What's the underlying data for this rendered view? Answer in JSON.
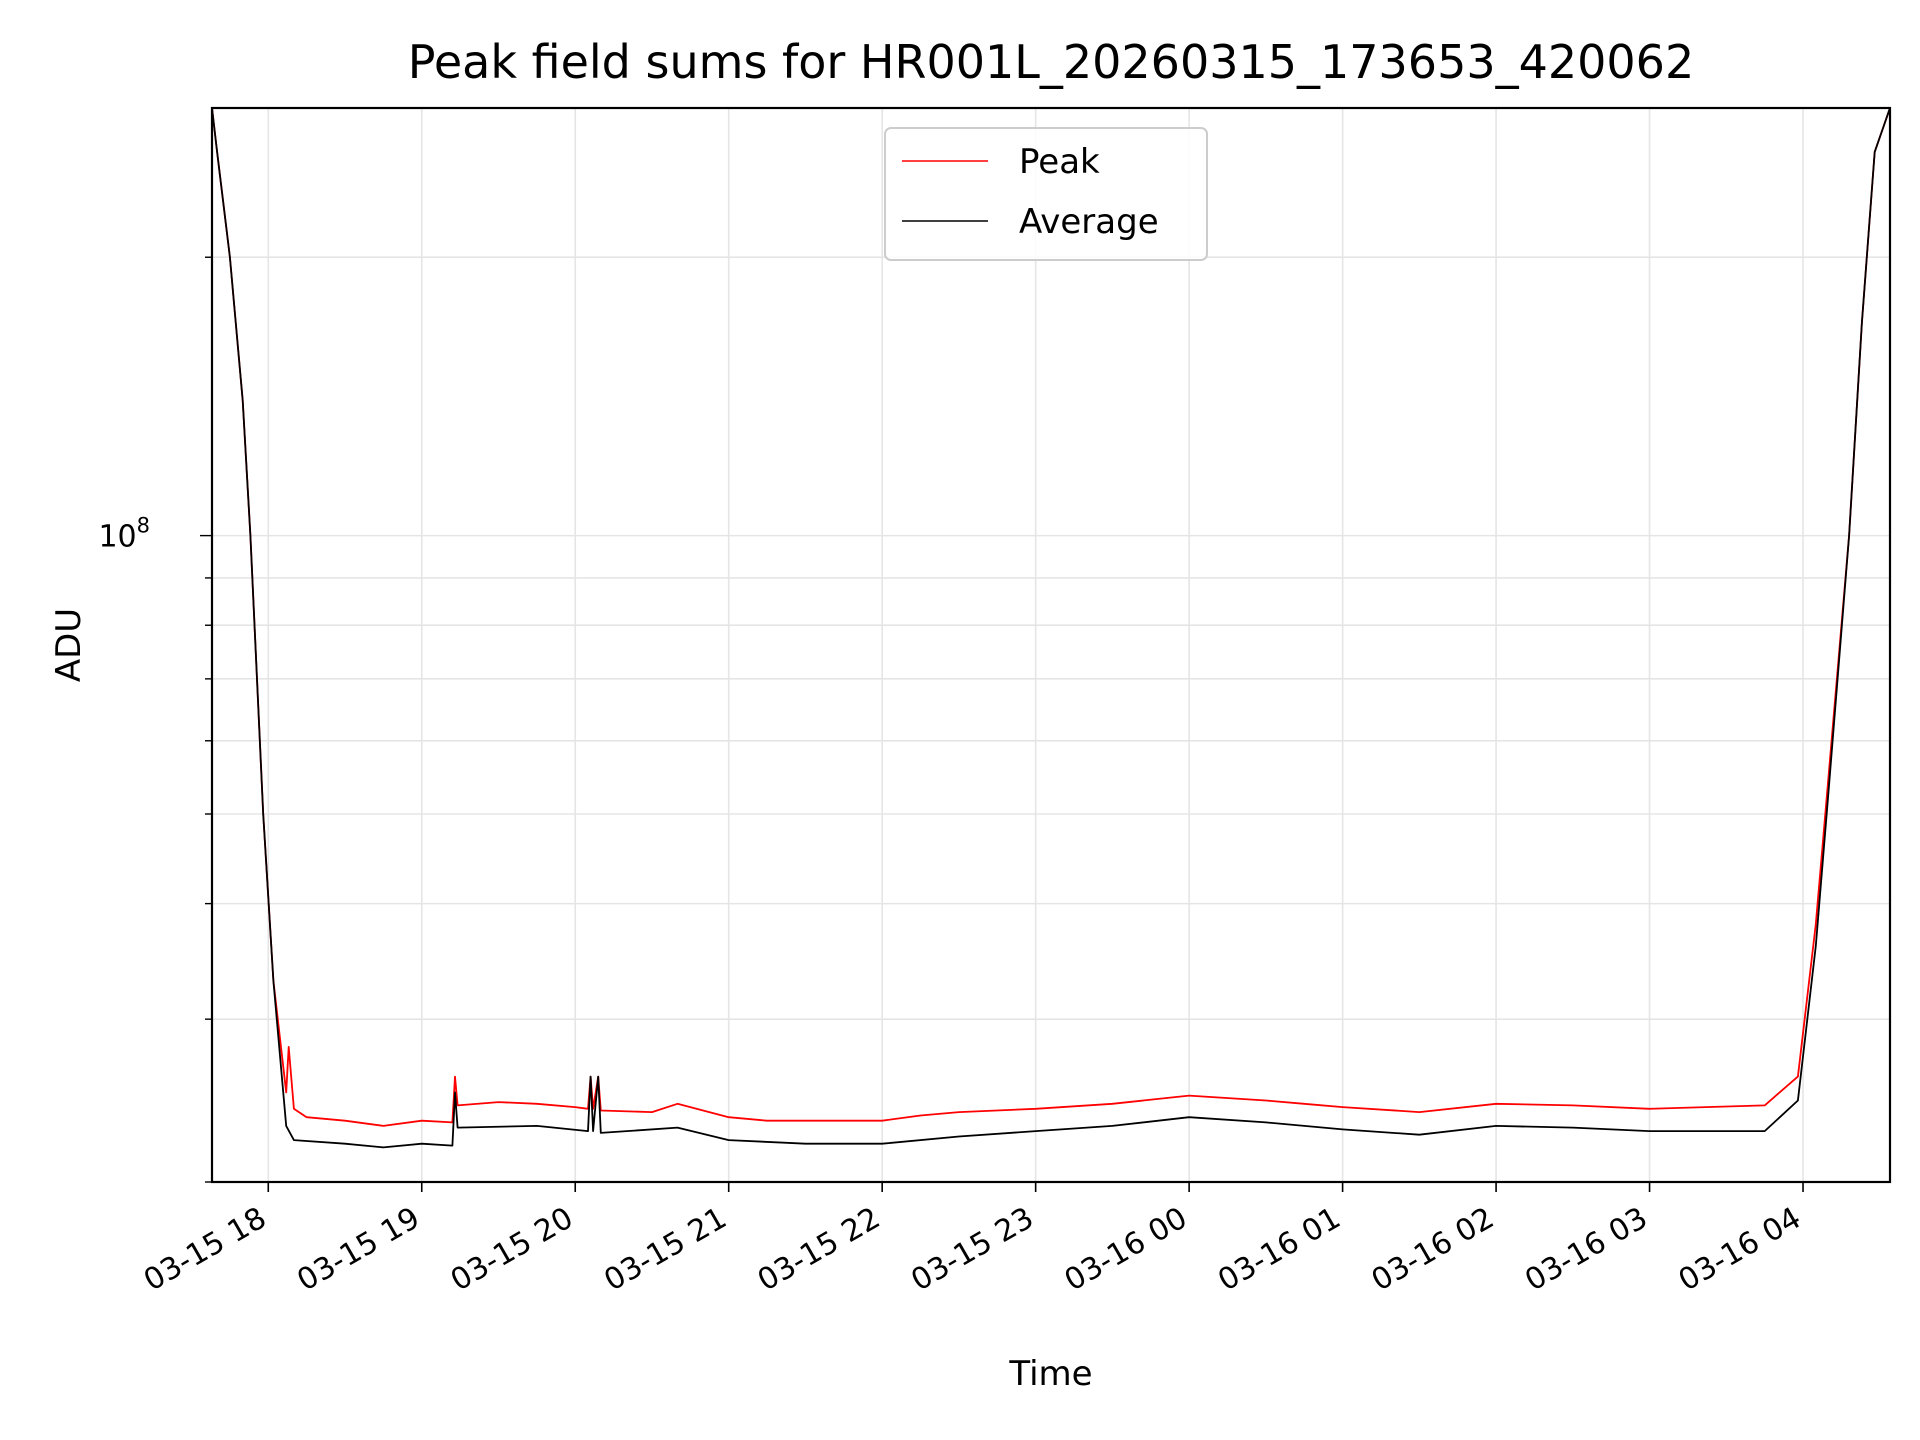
{
  "chart_data": {
    "type": "line",
    "title": "Peak field sums for HR001L_20260315_173653_420062",
    "xlabel": "Time",
    "ylabel": "ADU",
    "y_scale": "log",
    "xlim": [
      "2026-03-15 17:38",
      "2026-03-16 04:34"
    ],
    "ylim": [
      20000000,
      290000000
    ],
    "x_ticks": [
      "03-15 18",
      "03-15 19",
      "03-15 20",
      "03-15 21",
      "03-15 22",
      "03-15 23",
      "03-16 00",
      "03-16 01",
      "03-16 02",
      "03-16 03",
      "03-16 04"
    ],
    "y_tick_labels": [
      {
        "value": 100000000,
        "label": "10^8"
      }
    ],
    "grid": true,
    "legend": {
      "position": "upper center"
    },
    "series": [
      {
        "name": "Peak",
        "color": "#ff0000",
        "points": [
          [
            "2026-03-15 17:38",
            290000000
          ],
          [
            "2026-03-15 17:40",
            260000000
          ],
          [
            "2026-03-15 17:45",
            200000000
          ],
          [
            "2026-03-15 17:50",
            140000000
          ],
          [
            "2026-03-15 17:53",
            100000000
          ],
          [
            "2026-03-15 17:58",
            50000000
          ],
          [
            "2026-03-15 18:02",
            33000000
          ],
          [
            "2026-03-15 18:07",
            25000000
          ],
          [
            "2026-03-15 18:08",
            28000000
          ],
          [
            "2026-03-15 18:10",
            24000000
          ],
          [
            "2026-03-15 18:15",
            23500000
          ],
          [
            "2026-03-15 18:30",
            23300000
          ],
          [
            "2026-03-15 18:45",
            23000000
          ],
          [
            "2026-03-15 19:00",
            23300000
          ],
          [
            "2026-03-15 19:12",
            23200000
          ],
          [
            "2026-03-15 19:13",
            26000000
          ],
          [
            "2026-03-15 19:14",
            24200000
          ],
          [
            "2026-03-15 19:30",
            24400000
          ],
          [
            "2026-03-15 19:45",
            24300000
          ],
          [
            "2026-03-15 20:00",
            24100000
          ],
          [
            "2026-03-15 20:05",
            24000000
          ],
          [
            "2026-03-15 20:06",
            26000000
          ],
          [
            "2026-03-15 20:07",
            24000000
          ],
          [
            "2026-03-15 20:09",
            26000000
          ],
          [
            "2026-03-15 20:10",
            23900000
          ],
          [
            "2026-03-15 20:30",
            23800000
          ],
          [
            "2026-03-15 20:40",
            24300000
          ],
          [
            "2026-03-15 21:00",
            23500000
          ],
          [
            "2026-03-15 21:15",
            23300000
          ],
          [
            "2026-03-15 21:30",
            23300000
          ],
          [
            "2026-03-15 22:00",
            23300000
          ],
          [
            "2026-03-15 22:15",
            23600000
          ],
          [
            "2026-03-15 22:30",
            23800000
          ],
          [
            "2026-03-15 23:00",
            24000000
          ],
          [
            "2026-03-15 23:30",
            24300000
          ],
          [
            "2026-03-16 00:00",
            24800000
          ],
          [
            "2026-03-16 00:30",
            24500000
          ],
          [
            "2026-03-16 00:45",
            24300000
          ],
          [
            "2026-03-16 01:00",
            24100000
          ],
          [
            "2026-03-16 01:30",
            23800000
          ],
          [
            "2026-03-16 02:00",
            24300000
          ],
          [
            "2026-03-16 02:30",
            24200000
          ],
          [
            "2026-03-16 03:00",
            24000000
          ],
          [
            "2026-03-16 03:45",
            24200000
          ],
          [
            "2026-03-16 03:58",
            26000000
          ],
          [
            "2026-03-16 04:05",
            38000000
          ],
          [
            "2026-03-16 04:10",
            55000000
          ],
          [
            "2026-03-16 04:18",
            100000000
          ],
          [
            "2026-03-16 04:23",
            170000000
          ],
          [
            "2026-03-16 04:28",
            260000000
          ],
          [
            "2026-03-16 04:34",
            290000000
          ]
        ]
      },
      {
        "name": "Average",
        "color": "#000000",
        "points": [
          [
            "2026-03-15 17:38",
            290000000
          ],
          [
            "2026-03-15 17:40",
            260000000
          ],
          [
            "2026-03-15 17:45",
            200000000
          ],
          [
            "2026-03-15 17:50",
            140000000
          ],
          [
            "2026-03-15 17:53",
            100000000
          ],
          [
            "2026-03-15 17:58",
            50000000
          ],
          [
            "2026-03-15 18:02",
            33000000
          ],
          [
            "2026-03-15 18:07",
            23000000
          ],
          [
            "2026-03-15 18:10",
            22200000
          ],
          [
            "2026-03-15 18:30",
            22000000
          ],
          [
            "2026-03-15 18:45",
            21800000
          ],
          [
            "2026-03-15 19:00",
            22000000
          ],
          [
            "2026-03-15 19:12",
            21900000
          ],
          [
            "2026-03-15 19:13",
            25000000
          ],
          [
            "2026-03-15 19:14",
            22900000
          ],
          [
            "2026-03-15 19:45",
            23000000
          ],
          [
            "2026-03-15 20:05",
            22700000
          ],
          [
            "2026-03-15 20:06",
            26000000
          ],
          [
            "2026-03-15 20:07",
            22700000
          ],
          [
            "2026-03-15 20:09",
            26000000
          ],
          [
            "2026-03-15 20:10",
            22600000
          ],
          [
            "2026-03-15 20:40",
            22900000
          ],
          [
            "2026-03-15 21:00",
            22200000
          ],
          [
            "2026-03-15 21:30",
            22000000
          ],
          [
            "2026-03-15 22:00",
            22000000
          ],
          [
            "2026-03-15 22:30",
            22400000
          ],
          [
            "2026-03-15 23:00",
            22700000
          ],
          [
            "2026-03-15 23:30",
            23000000
          ],
          [
            "2026-03-16 00:00",
            23500000
          ],
          [
            "2026-03-16 00:30",
            23200000
          ],
          [
            "2026-03-16 01:00",
            22800000
          ],
          [
            "2026-03-16 01:30",
            22500000
          ],
          [
            "2026-03-16 02:00",
            23000000
          ],
          [
            "2026-03-16 02:30",
            22900000
          ],
          [
            "2026-03-16 03:00",
            22700000
          ],
          [
            "2026-03-16 03:45",
            22700000
          ],
          [
            "2026-03-16 03:58",
            24500000
          ],
          [
            "2026-03-16 04:05",
            36000000
          ],
          [
            "2026-03-16 04:10",
            53000000
          ],
          [
            "2026-03-16 04:18",
            100000000
          ],
          [
            "2026-03-16 04:23",
            170000000
          ],
          [
            "2026-03-16 04:28",
            260000000
          ],
          [
            "2026-03-16 04:34",
            290000000
          ]
        ]
      }
    ]
  }
}
